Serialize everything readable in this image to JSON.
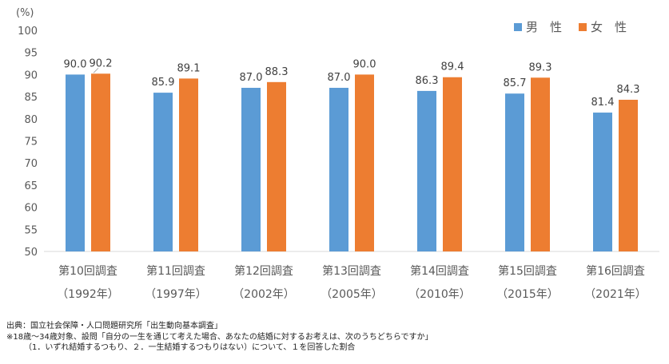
{
  "chart_data": {
    "type": "bar",
    "yunit": "(%)",
    "ylim": [
      50,
      100
    ],
    "yticks": [
      50,
      55,
      60,
      65,
      70,
      75,
      80,
      85,
      90,
      95,
      100
    ],
    "grid": false,
    "legend_position": "top-right",
    "categories": [
      {
        "survey": "第10回調査",
        "year": "（1992年）"
      },
      {
        "survey": "第11回調査",
        "year": "（1997年）"
      },
      {
        "survey": "第12回調査",
        "year": "（2002年）"
      },
      {
        "survey": "第13回調査",
        "year": "（2005年）"
      },
      {
        "survey": "第14回調査",
        "year": "（2010年）"
      },
      {
        "survey": "第15回調査",
        "year": "（2015年）"
      },
      {
        "survey": "第16回調査",
        "year": "（2021年）"
      }
    ],
    "series": [
      {
        "name": "男　性",
        "color": "#5b9bd5",
        "values": [
          90.0,
          85.9,
          87.0,
          87.0,
          86.3,
          85.7,
          81.4
        ]
      },
      {
        "name": "女　性",
        "color": "#ed7d31",
        "values": [
          90.2,
          89.1,
          88.3,
          90.0,
          89.4,
          89.3,
          84.3
        ]
      }
    ]
  },
  "footnotes": {
    "source": "出典：国立社会保障・人口問題研究所「出生動向基本調査」",
    "note1": "※18歳～34歳対象、設問「自分の一生を通じて考えた場合、あなたの結婚に対するお考えは、次のうちどちらですか」",
    "note2": "（1．いずれ結婚するつもり、２．一生結婚するつもりはない）について、１を回答した割合"
  }
}
